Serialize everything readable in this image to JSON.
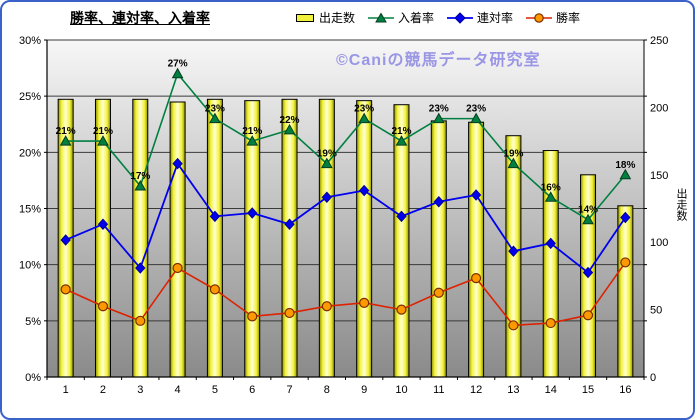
{
  "title": "勝率、連対率、入着率",
  "watermark": "©Caniの競馬データ研究室",
  "legend": {
    "items": [
      {
        "label": "出走数",
        "marker": "bar"
      },
      {
        "label": "入着率",
        "marker": "triangle"
      },
      {
        "label": "連対率",
        "marker": "diamond"
      },
      {
        "label": "勝率",
        "marker": "circle"
      }
    ]
  },
  "colors": {
    "green": "#008040",
    "blue": "#0000ee",
    "red": "#dd2200",
    "orange": "#ff9900",
    "bar_side": "#8f8f00",
    "bar_light": "#f2f23c",
    "bar_mid": "#ffffd2",
    "plot_top": "#f7f7f7",
    "plot_bottom": "#8a8a8a",
    "watermark": "#9a96e6",
    "chart_border": "#3a62c8"
  },
  "chart_data": {
    "type": "bar",
    "combo": "bars on right axis, three lines on left percentage axis",
    "categories": [
      "1",
      "2",
      "3",
      "4",
      "5",
      "6",
      "7",
      "8",
      "9",
      "10",
      "11",
      "12",
      "13",
      "14",
      "15",
      "16"
    ],
    "series": [
      {
        "name": "出走数",
        "kind": "bar",
        "axis": "right",
        "values": [
          206,
          206,
          206,
          204,
          206,
          205,
          206,
          206,
          205,
          202,
          190,
          189,
          179,
          168,
          150,
          127
        ]
      },
      {
        "name": "入着率",
        "kind": "line",
        "marker": "triangle",
        "axis": "left",
        "values": [
          21,
          21,
          17,
          27,
          23,
          21,
          22,
          19,
          23,
          21,
          23,
          23,
          19,
          16,
          14,
          18
        ],
        "labels": [
          "21%",
          "21%",
          "17%",
          "27%",
          "23%",
          "21%",
          "22%",
          "19%",
          "23%",
          "21%",
          "23%",
          "23%",
          "19%",
          "16%",
          "14%",
          "18%"
        ]
      },
      {
        "name": "連対率",
        "kind": "line",
        "marker": "diamond",
        "axis": "left",
        "values": [
          12.2,
          13.6,
          9.7,
          19,
          14.3,
          14.6,
          13.6,
          16,
          16.6,
          14.3,
          15.6,
          16.2,
          11.2,
          11.9,
          9.3,
          14.2
        ]
      },
      {
        "name": "勝率",
        "kind": "line",
        "marker": "circle",
        "axis": "left",
        "values": [
          7.8,
          6.3,
          5,
          9.7,
          7.8,
          5.4,
          5.7,
          6.3,
          6.6,
          6,
          7.5,
          8.8,
          4.6,
          4.8,
          5.5,
          10.2
        ]
      }
    ],
    "left_axis": {
      "min": 0,
      "max": 30,
      "step": 5,
      "tick_labels": [
        "0%",
        "5%",
        "10%",
        "15%",
        "20%",
        "25%",
        "30%"
      ]
    },
    "right_axis": {
      "min": 0,
      "max": 250,
      "step": 50,
      "tick_labels": [
        "0",
        "50",
        "100",
        "150",
        "200",
        "250"
      ],
      "title": "出走数"
    },
    "grid": true,
    "legend_position": "top"
  }
}
